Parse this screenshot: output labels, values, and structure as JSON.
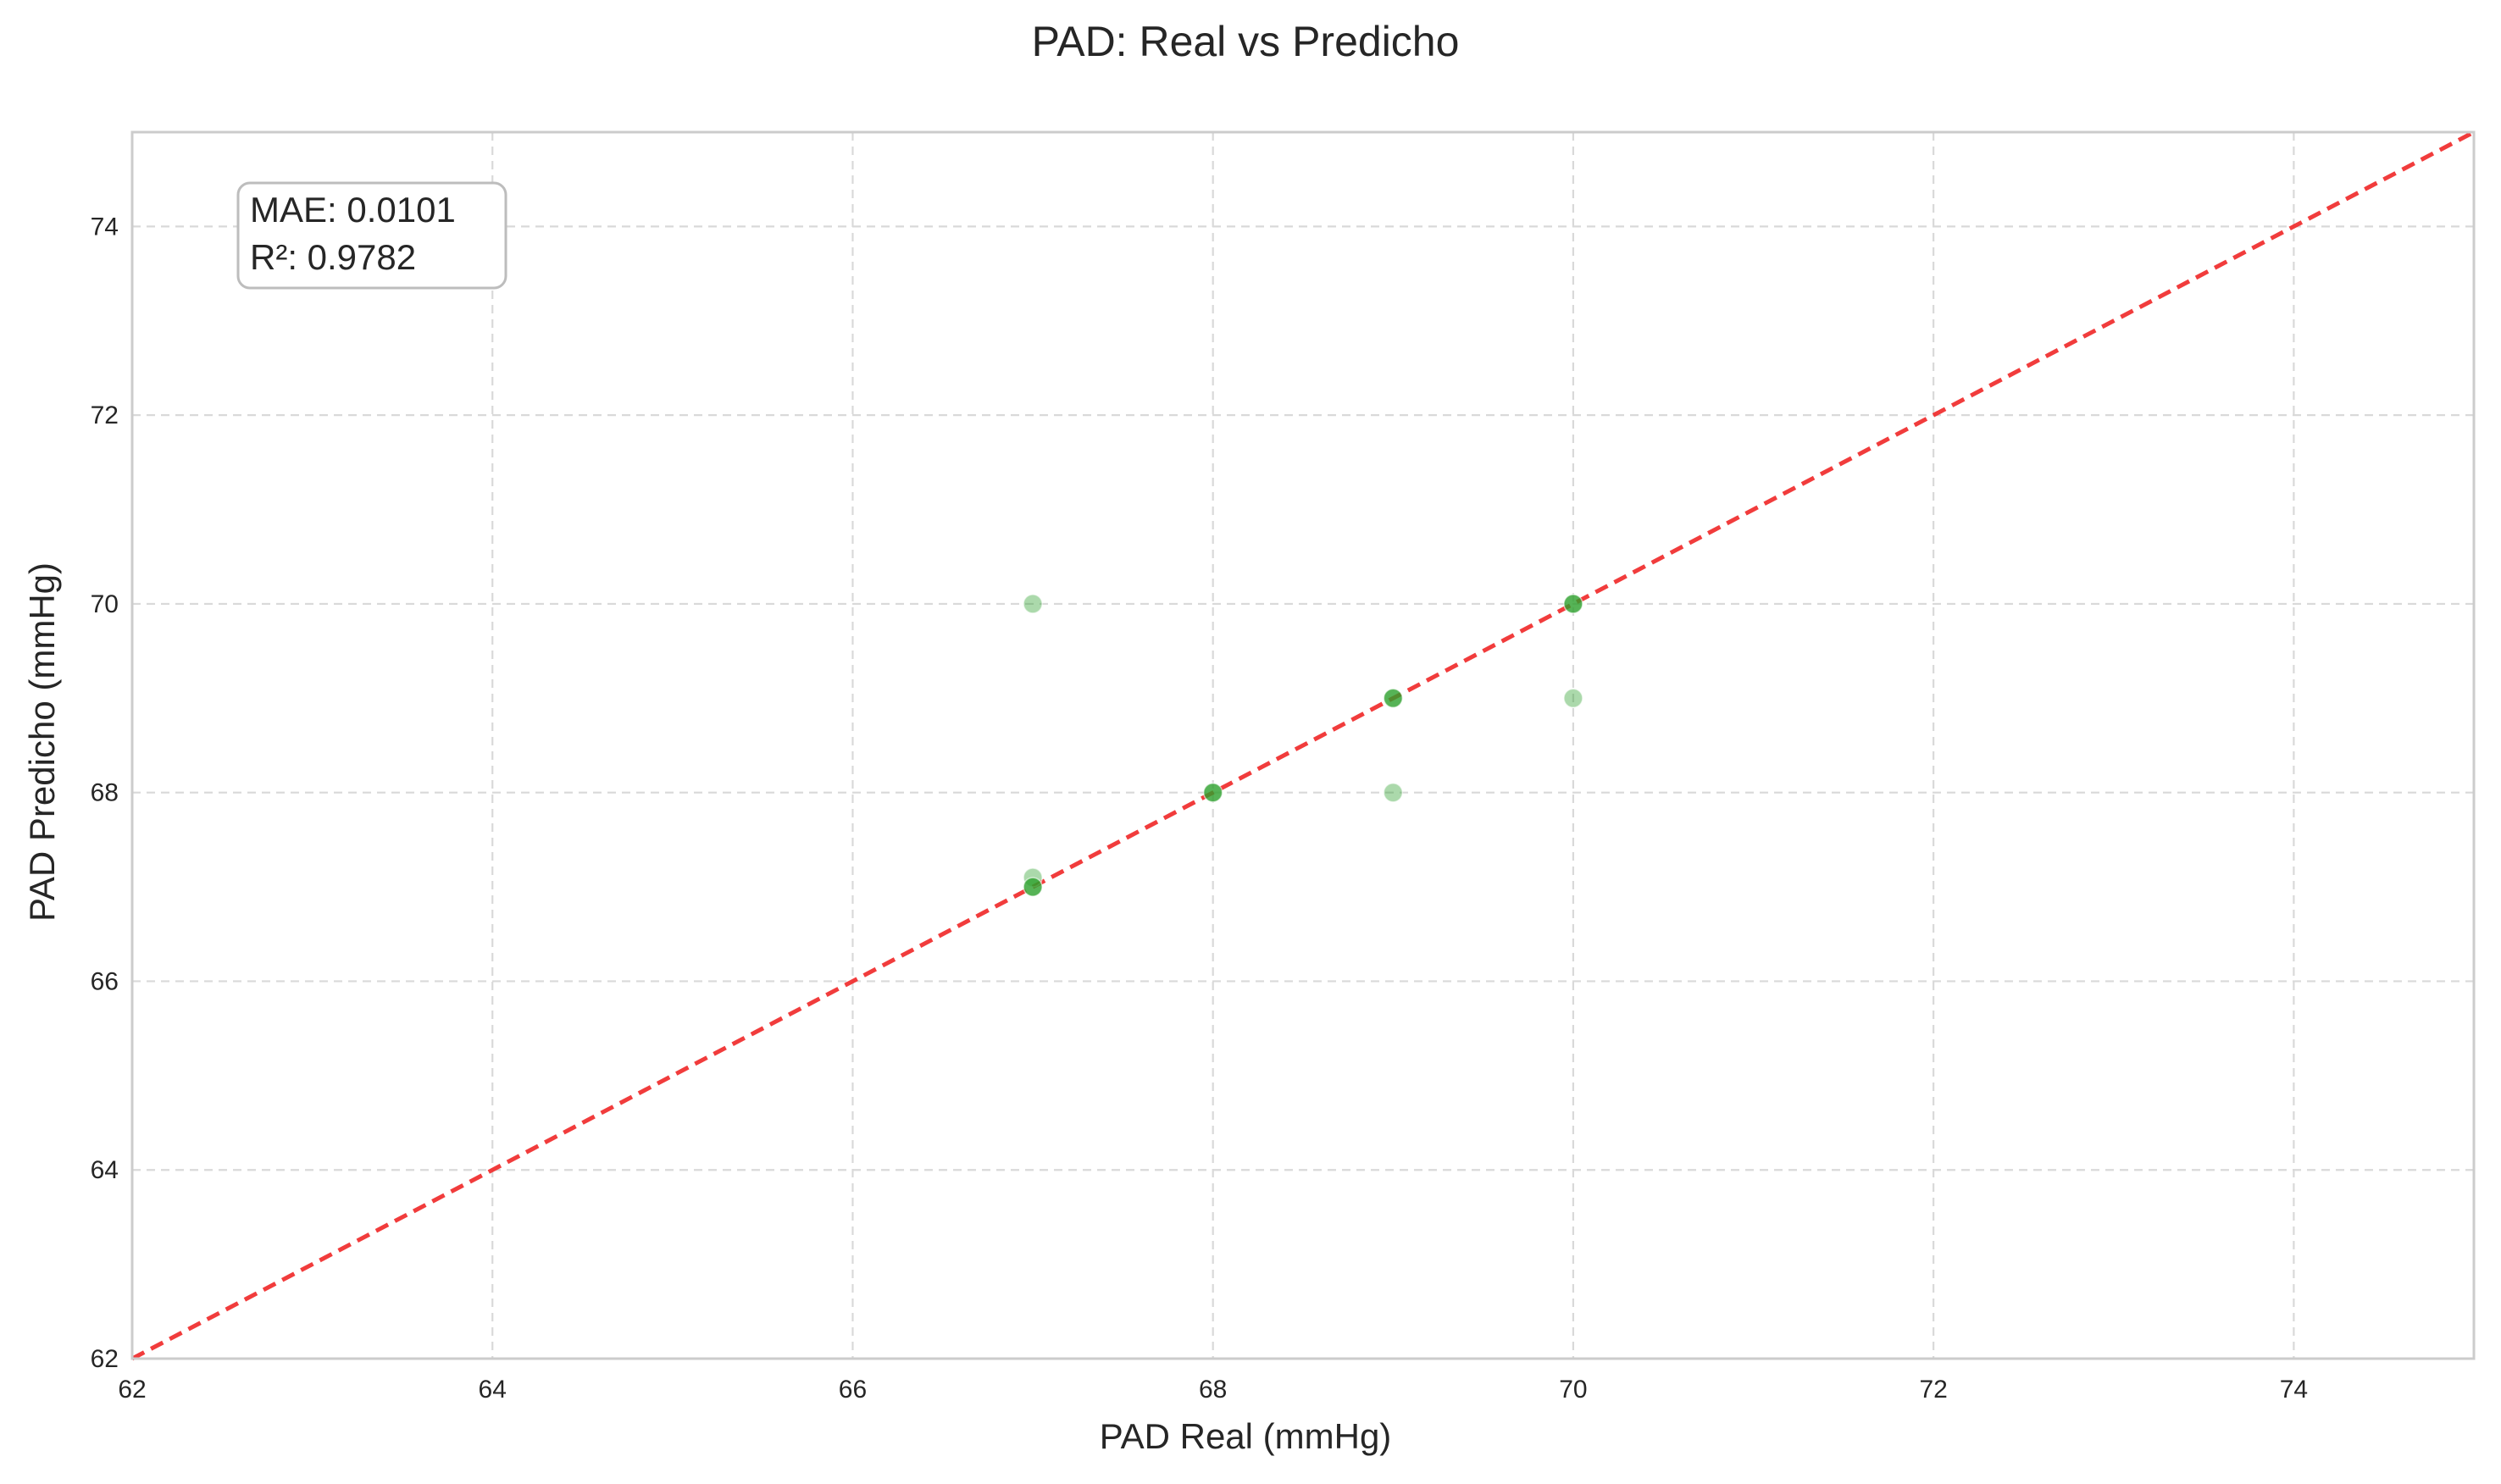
{
  "chart_data": {
    "type": "scatter",
    "title": "PAD: Real vs Predicho",
    "xlabel": "PAD Real (mmHg)",
    "ylabel": "PAD Predicho (mmHg)",
    "xlim": [
      62,
      75
    ],
    "ylim": [
      62,
      75
    ],
    "xticks": [
      62,
      64,
      66,
      68,
      70,
      72,
      74
    ],
    "yticks": [
      62,
      64,
      66,
      68,
      70,
      72,
      74
    ],
    "grid": true,
    "grid_style": "dashed",
    "annotation": {
      "lines": [
        "MAE: 0.0101",
        "R²: 0.9782"
      ],
      "placement": "top-left"
    },
    "reference_line": {
      "from": [
        62,
        62
      ],
      "to": [
        75,
        75
      ],
      "style": "dashed",
      "color": "#f03232"
    },
    "point_color": "#2ca02c",
    "points": [
      {
        "x": 67,
        "y": 70,
        "opacity": 0.4
      },
      {
        "x": 67,
        "y": 67.1,
        "opacity": 0.4
      },
      {
        "x": 67,
        "y": 67,
        "opacity": 0.8
      },
      {
        "x": 68,
        "y": 68,
        "opacity": 0.8
      },
      {
        "x": 69,
        "y": 69,
        "opacity": 0.8
      },
      {
        "x": 69,
        "y": 68,
        "opacity": 0.4
      },
      {
        "x": 70,
        "y": 70,
        "opacity": 0.8
      },
      {
        "x": 70,
        "y": 69,
        "opacity": 0.4
      }
    ]
  }
}
